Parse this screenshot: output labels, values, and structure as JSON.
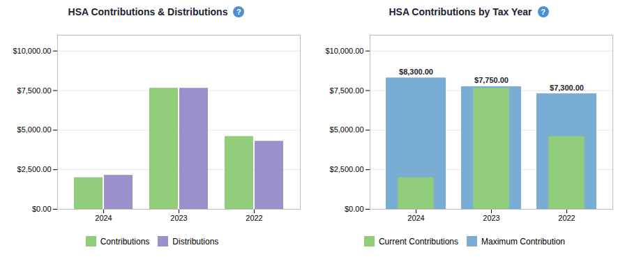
{
  "chart_data": [
    {
      "type": "bar",
      "title": "HSA Contributions & Distributions",
      "annotations": [
        "?"
      ],
      "categories": [
        "2024",
        "2023",
        "2022"
      ],
      "series": [
        {
          "name": "Contributions",
          "color": "#90cc7a",
          "values": [
            2000,
            7650,
            4600
          ]
        },
        {
          "name": "Distributions",
          "color": "#9b90cc",
          "values": [
            2150,
            7650,
            4300
          ]
        }
      ],
      "ylim": [
        0,
        11000
      ],
      "yticks": [
        {
          "value": 0,
          "label": "$0.00"
        },
        {
          "value": 2500,
          "label": "$2,500.00"
        },
        {
          "value": 5000,
          "label": "$5,000.00"
        },
        {
          "value": 7500,
          "label": "$7,500.00"
        },
        {
          "value": 10000,
          "label": "$10,000.00"
        }
      ],
      "grid": true,
      "legend": "bottom"
    },
    {
      "type": "overlay",
      "title": "HSA Contributions by Tax Year",
      "annotations": [
        "?"
      ],
      "categories": [
        "2024",
        "2023",
        "2022"
      ],
      "series": [
        {
          "name": "Current Contributions",
          "color": "#90cc7a",
          "values": [
            2000,
            7650,
            4600
          ]
        },
        {
          "name": "Maximum Contribution",
          "color": "#7aadd4",
          "values": [
            8300,
            7750,
            7300
          ],
          "data_labels": true,
          "value_labels": [
            "$8,300.00",
            "$7,750.00",
            "$7,300.00"
          ]
        }
      ],
      "ylim": [
        0,
        11000
      ],
      "yticks": [
        {
          "value": 0,
          "label": "$0.00"
        },
        {
          "value": 2500,
          "label": "$2,500.00"
        },
        {
          "value": 5000,
          "label": "$5,000.00"
        },
        {
          "value": 7500,
          "label": "$7,500.00"
        },
        {
          "value": 10000,
          "label": "$10,000.00"
        }
      ],
      "grid": true,
      "legend": "bottom"
    }
  ]
}
